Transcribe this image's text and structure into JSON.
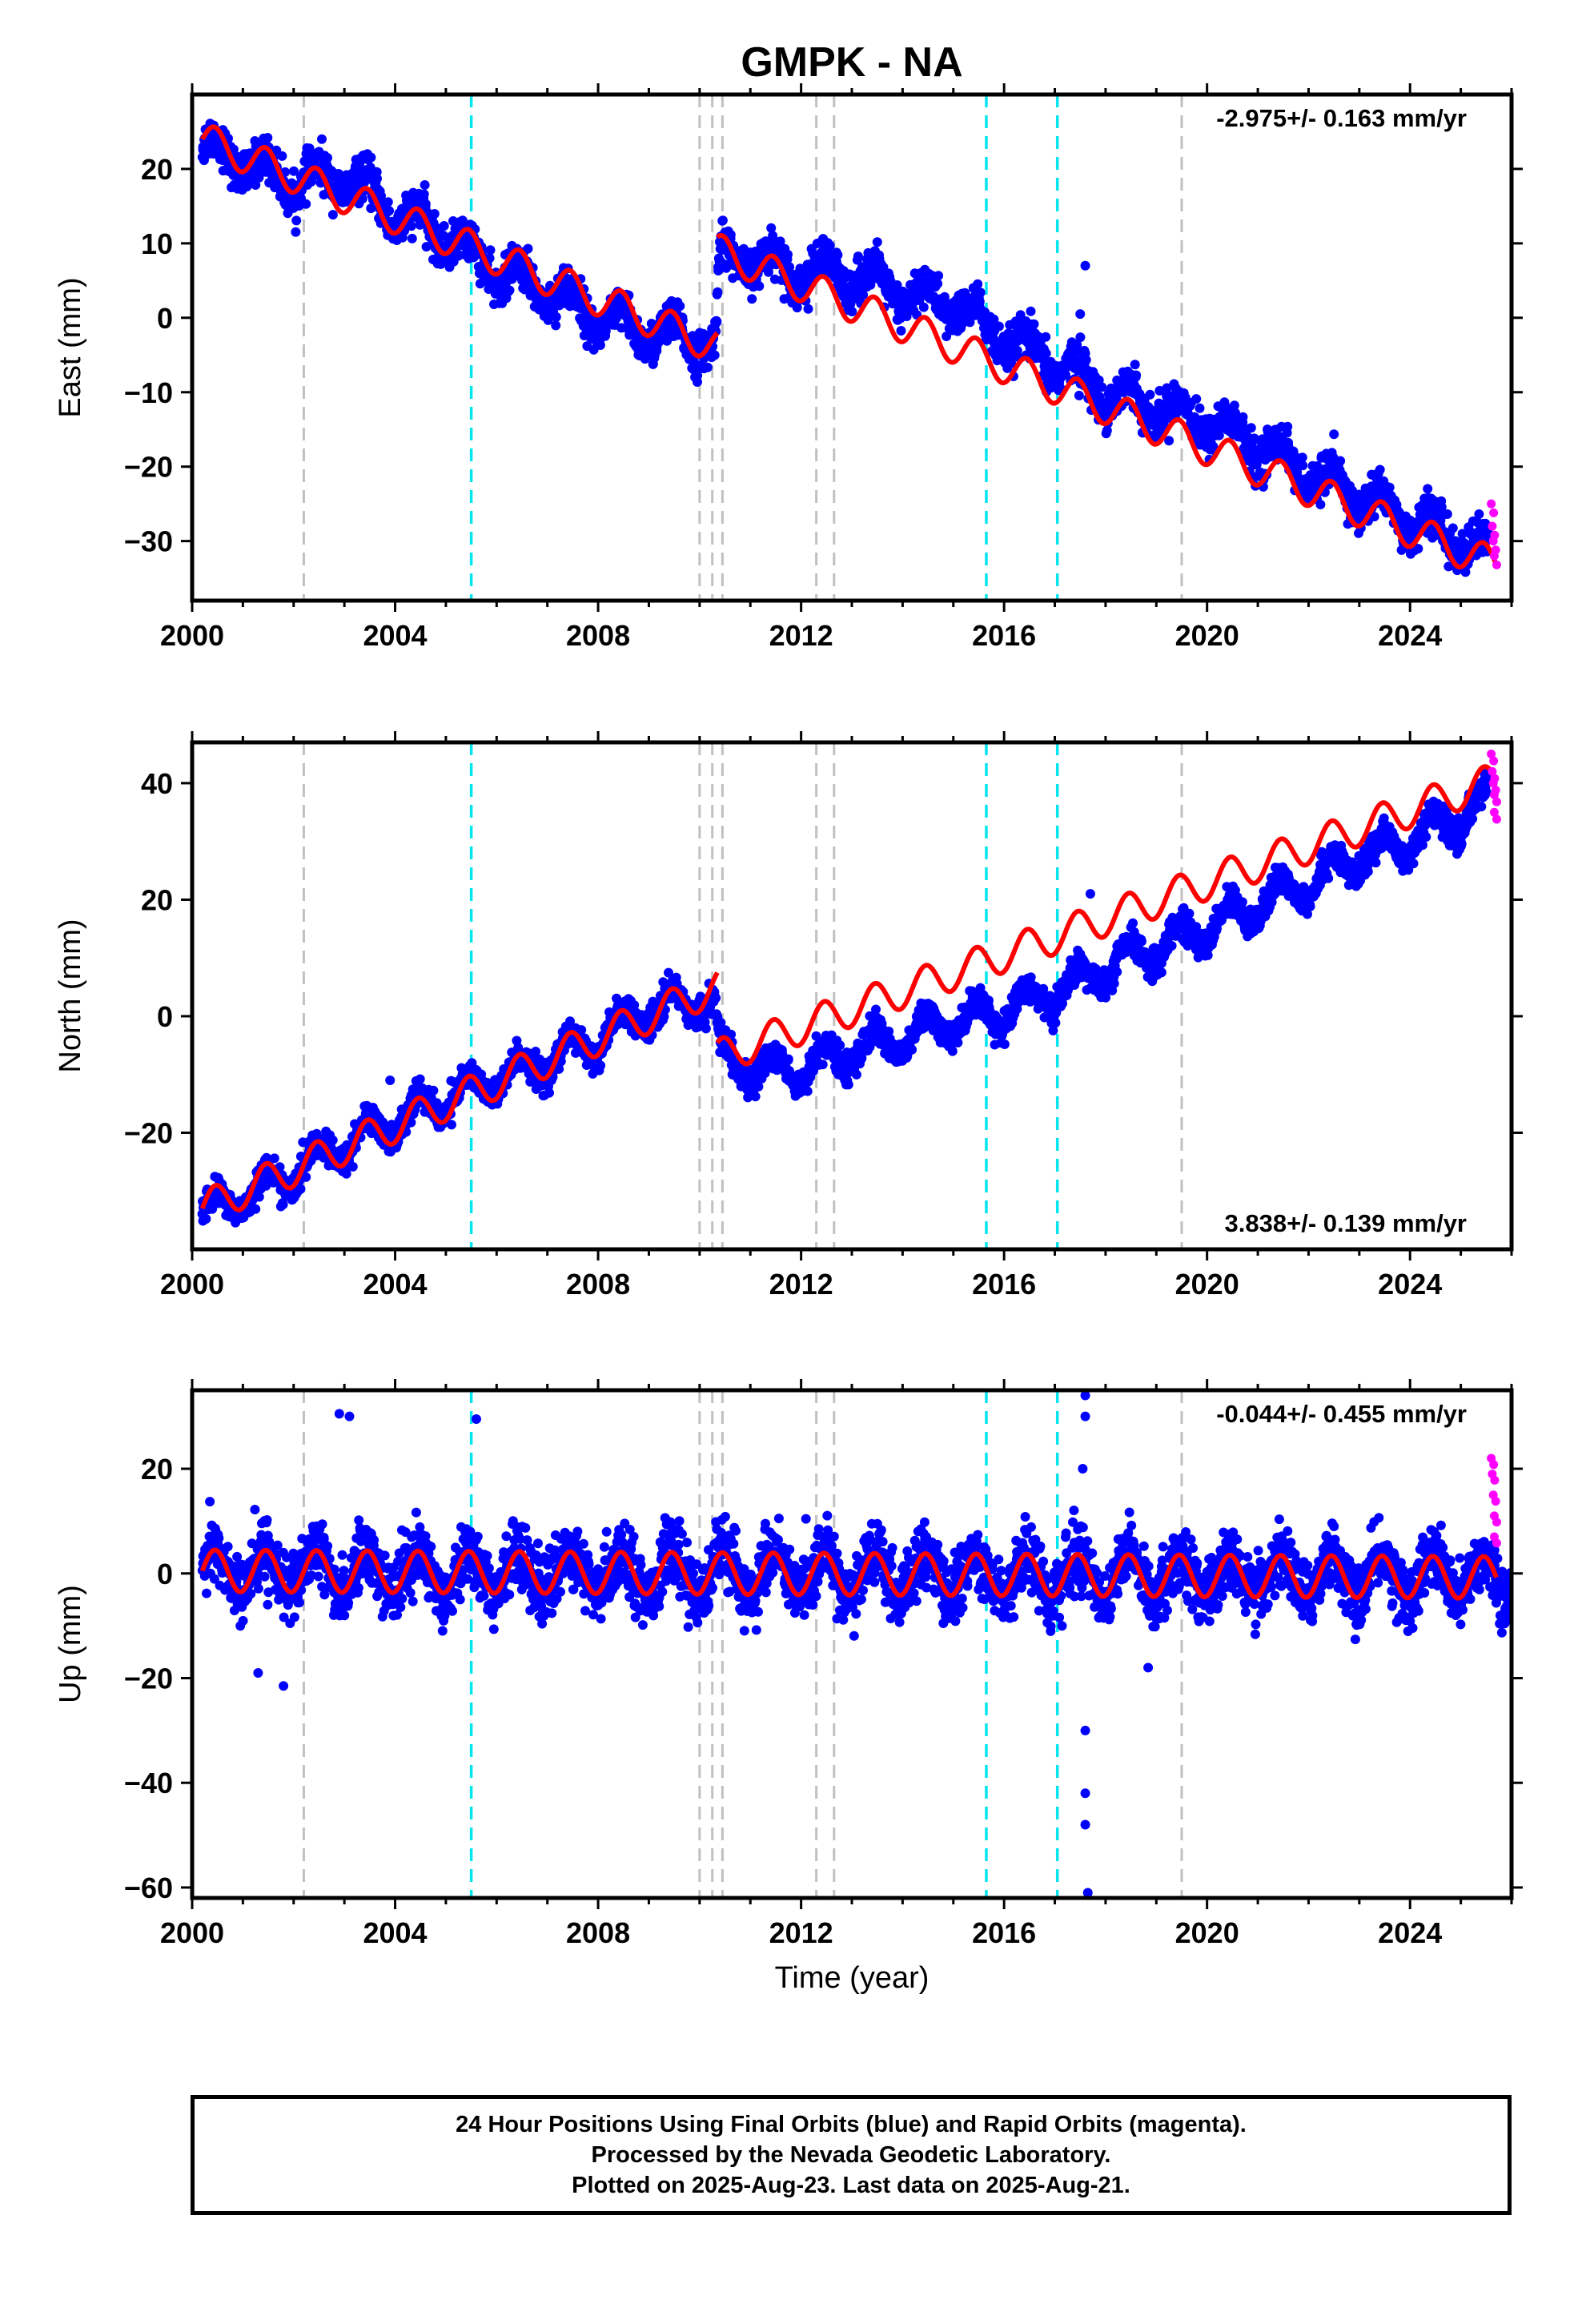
{
  "title": "GMPK - NA",
  "xlabel": "Time (year)",
  "caption": {
    "line1": "24 Hour Positions Using Final Orbits (blue) and Rapid Orbits (magenta).",
    "line2": "Processed by the Nevada Geodetic Laboratory.",
    "line3": "Plotted on 2025-Aug-23. Last data on 2025-Aug-21."
  },
  "colors": {
    "final_orbits": "#0000ff",
    "rapid_orbits": "#ff00ff",
    "model_fit": "#ff0000",
    "equipment_change": "#c0c0c0",
    "earthquake": "#00e5ee"
  },
  "chart_data": [
    {
      "type": "scatter",
      "panel": "east",
      "ylabel": "East (mm)",
      "rate_label": "-2.975+/- 0.163 mm/yr",
      "rate_position": "top-right",
      "xlim": [
        2000,
        2026
      ],
      "ylim": [
        -38,
        30
      ],
      "x_ticks": [
        "2000",
        "2004",
        "2008",
        "2012",
        "2016",
        "2020",
        "2024"
      ],
      "y_ticks": [
        20,
        10,
        0,
        -10,
        -20,
        -30
      ],
      "grid": false,
      "final_orbits_series": {
        "name": "Final Orbits",
        "x": [
          2000.2,
          2001.0,
          2002.0,
          2003.0,
          2004.0,
          2005.0,
          2006.0,
          2007.0,
          2008.0,
          2009.0,
          2010.0,
          2010.3,
          2010.4,
          2011.0,
          2012.0,
          2013.0,
          2014.0,
          2015.0,
          2016.0,
          2017.0,
          2018.0,
          2019.0,
          2020.0,
          2021.0,
          2022.0,
          2023.0,
          2024.0,
          2025.0,
          2025.55
        ],
        "y": [
          23.0,
          21.0,
          18.0,
          19.0,
          14.0,
          11.0,
          6.0,
          4.0,
          0.0,
          -2.0,
          -3.0,
          -4.0,
          8.0,
          8.0,
          6.0,
          6.0,
          3.0,
          2.0,
          -3.0,
          -6.0,
          -10.0,
          -12.0,
          -14.0,
          -17.0,
          -21.0,
          -24.0,
          -27.0,
          -30.0,
          -32.0
        ],
        "spread": 2.5
      },
      "rapid_orbits_series": {
        "name": "Rapid Orbits",
        "x": [
          2025.6,
          2025.62,
          2025.64,
          2025.66
        ],
        "y": [
          -25.0,
          -28.0,
          -30.0,
          -32.0
        ]
      },
      "model_fit": {
        "name": "Model",
        "segments": [
          {
            "x_start": 2000.2,
            "x_end": 2010.35,
            "intercept": 24.0,
            "slope": -2.75,
            "annual_amp": 2.3
          },
          {
            "x_start": 2010.35,
            "x_end": 2025.7,
            "intercept": 9.0,
            "slope": -2.75,
            "annual_amp": 2.3,
            "ref_year": 2010.35
          }
        ]
      },
      "outliers": [
        {
          "x": 2017.6,
          "y": 7.0
        },
        {
          "x": 2017.5,
          "y": 0.5
        }
      ]
    },
    {
      "type": "scatter",
      "panel": "north",
      "ylabel": "North (mm)",
      "rate_label": "3.838+/- 0.139 mm/yr",
      "rate_position": "bottom-right",
      "xlim": [
        2000,
        2026
      ],
      "ylim": [
        -40,
        47
      ],
      "x_ticks": [
        "2000",
        "2004",
        "2008",
        "2012",
        "2016",
        "2020",
        "2024"
      ],
      "y_ticks": [
        40,
        20,
        0,
        -20
      ],
      "grid": false,
      "final_orbits_series": {
        "name": "Final Orbits",
        "x": [
          2000.2,
          2001.0,
          2002.0,
          2003.0,
          2004.0,
          2005.0,
          2006.0,
          2007.0,
          2008.0,
          2009.0,
          2010.0,
          2010.3,
          2010.4,
          2011.0,
          2012.0,
          2013.0,
          2014.0,
          2015.0,
          2016.0,
          2017.0,
          2018.0,
          2019.0,
          2020.0,
          2021.0,
          2022.0,
          2023.0,
          2024.0,
          2025.0,
          2025.55
        ],
        "y": [
          -34.0,
          -31.0,
          -27.0,
          -22.0,
          -18.0,
          -14.0,
          -11.0,
          -8.0,
          -4.0,
          1.0,
          3.0,
          2.0,
          -7.0,
          -9.0,
          -9.0,
          -6.0,
          -4.0,
          -1.0,
          1.0,
          4.0,
          8.0,
          12.0,
          15.0,
          19.0,
          23.0,
          27.0,
          30.0,
          34.0,
          38.0
        ],
        "spread": 2.3
      },
      "rapid_orbits_series": {
        "name": "Rapid Orbits",
        "x": [
          2025.6,
          2025.62,
          2025.64,
          2025.66,
          2025.66
        ],
        "y": [
          45.0,
          42.0,
          40.0,
          38.0,
          35.0
        ]
      },
      "model_fit": {
        "name": "Model",
        "segments": [
          {
            "x_start": 2000.2,
            "x_end": 2010.35,
            "intercept": -33.0,
            "slope": 3.75,
            "annual_amp": 3.0
          },
          {
            "x_start": 2010.35,
            "x_end": 2025.7,
            "intercept": -7.0,
            "slope": 3.1,
            "annual_amp": 3.0,
            "ref_year": 2010.35
          }
        ]
      },
      "outliers": [
        {
          "x": 2003.9,
          "y": -11.0
        },
        {
          "x": 2017.7,
          "y": 21.0
        }
      ]
    },
    {
      "type": "scatter",
      "panel": "up",
      "ylabel": "Up (mm)",
      "rate_label": "-0.044+/- 0.455 mm/yr",
      "rate_position": "top-right",
      "xlim": [
        2000,
        2026
      ],
      "ylim": [
        -62,
        35
      ],
      "x_ticks": [
        "2000",
        "2004",
        "2008",
        "2012",
        "2016",
        "2020",
        "2024"
      ],
      "y_ticks": [
        20,
        0,
        -20,
        -40,
        -60
      ],
      "grid": false,
      "final_orbits_series": {
        "name": "Final Orbits",
        "x": [
          2000.2,
          2026.0
        ],
        "y": [
          0.0,
          0.0
        ],
        "spread": 5.5
      },
      "rapid_orbits_series": {
        "name": "Rapid Orbits",
        "x": [
          2025.6,
          2025.62,
          2025.64,
          2025.66,
          2025.66
        ],
        "y": [
          22.0,
          19.0,
          15.0,
          11.0,
          7.0
        ]
      },
      "model_fit": {
        "name": "Model",
        "segments": [
          {
            "x_start": 2000.2,
            "x_end": 2025.7,
            "intercept": 0.5,
            "slope": -0.05,
            "annual_amp": 4.0
          }
        ]
      },
      "outliers": [
        {
          "x": 2002.9,
          "y": 30.5
        },
        {
          "x": 2003.1,
          "y": 30.0
        },
        {
          "x": 2005.6,
          "y": 29.5
        },
        {
          "x": 2017.6,
          "y": 34.0
        },
        {
          "x": 2017.6,
          "y": 30.0
        },
        {
          "x": 2017.55,
          "y": 20.0
        },
        {
          "x": 2017.6,
          "y": -30.0
        },
        {
          "x": 2017.6,
          "y": -42.0
        },
        {
          "x": 2017.6,
          "y": -48.0
        },
        {
          "x": 2017.65,
          "y": -61.0
        },
        {
          "x": 2001.3,
          "y": -19.0
        },
        {
          "x": 2001.8,
          "y": -21.5
        }
      ]
    }
  ],
  "vertical_markers": {
    "equipment_change": [
      2002.2,
      2010.0,
      2010.25,
      2010.45,
      2012.3,
      2012.65,
      2019.5
    ],
    "earthquake": [
      2005.5,
      2015.65,
      2017.05
    ]
  }
}
